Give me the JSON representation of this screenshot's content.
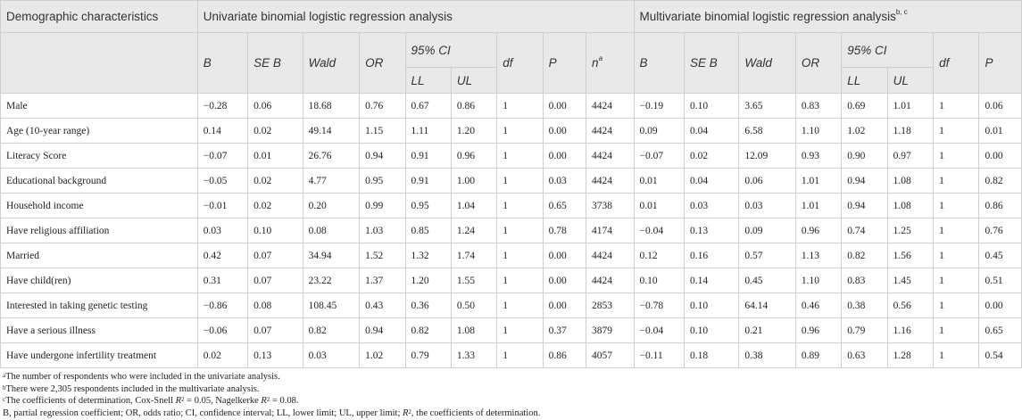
{
  "header": {
    "col_demo": "Demographic characteristics",
    "group_uni": "Univariate binomial logistic regression analysis",
    "group_multi": "Multivariate binomial logistic regression analysis",
    "group_multi_sup": "b, c",
    "ci_label": "95% CI",
    "stats_uni": [
      "B",
      "SE B",
      "Wald",
      "OR"
    ],
    "df": "df",
    "p": "P",
    "n": "n",
    "n_sup": "a",
    "stats_multi": [
      "B",
      "SE B",
      "Wald",
      "OR"
    ],
    "ll": "LL",
    "ul": "UL"
  },
  "rows": [
    {
      "label": "Male",
      "u": [
        "−0.28",
        "0.06",
        "18.68",
        "0.76",
        "0.67",
        "0.86",
        "1",
        "0.00",
        "4424"
      ],
      "m": [
        "−0.19",
        "0.10",
        "3.65",
        "0.83",
        "0.69",
        "1.01",
        "1",
        "0.06"
      ]
    },
    {
      "label": "Age (10-year range)",
      "u": [
        "0.14",
        "0.02",
        "49.14",
        "1.15",
        "1.11",
        "1.20",
        "1",
        "0.00",
        "4424"
      ],
      "m": [
        "0.09",
        "0.04",
        "6.58",
        "1.10",
        "1.02",
        "1.18",
        "1",
        "0.01"
      ]
    },
    {
      "label": "Literacy Score",
      "u": [
        "−0.07",
        "0.01",
        "26.76",
        "0.94",
        "0.91",
        "0.96",
        "1",
        "0.00",
        "4424"
      ],
      "m": [
        "−0.07",
        "0.02",
        "12.09",
        "0.93",
        "0.90",
        "0.97",
        "1",
        "0.00"
      ]
    },
    {
      "label": "Educational background",
      "u": [
        "−0.05",
        "0.02",
        "4.77",
        "0.95",
        "0.91",
        "1.00",
        "1",
        "0.03",
        "4424"
      ],
      "m": [
        "0.01",
        "0.04",
        "0.06",
        "1.01",
        "0.94",
        "1.08",
        "1",
        "0.82"
      ]
    },
    {
      "label": "Household income",
      "u": [
        "−0.01",
        "0.02",
        "0.20",
        "0.99",
        "0.95",
        "1.04",
        "1",
        "0.65",
        "3738"
      ],
      "m": [
        "0.01",
        "0.03",
        "0.03",
        "1.01",
        "0.94",
        "1.08",
        "1",
        "0.86"
      ]
    },
    {
      "label": "Have religious affiliation",
      "u": [
        "0.03",
        "0.10",
        "0.08",
        "1.03",
        "0.85",
        "1.24",
        "1",
        "0.78",
        "4174"
      ],
      "m": [
        "−0.04",
        "0.13",
        "0.09",
        "0.96",
        "0.74",
        "1.25",
        "1",
        "0.76"
      ]
    },
    {
      "label": "Married",
      "u": [
        "0.42",
        "0.07",
        "34.94",
        "1.52",
        "1.32",
        "1.74",
        "1",
        "0.00",
        "4424"
      ],
      "m": [
        "0.12",
        "0.16",
        "0.57",
        "1.13",
        "0.82",
        "1.56",
        "1",
        "0.45"
      ]
    },
    {
      "label": "Have child(ren)",
      "u": [
        "0.31",
        "0.07",
        "23.22",
        "1.37",
        "1.20",
        "1.55",
        "1",
        "0.00",
        "4424"
      ],
      "m": [
        "0.10",
        "0.14",
        "0.45",
        "1.10",
        "0.83",
        "1.45",
        "1",
        "0.51"
      ]
    },
    {
      "label": "Interested in taking genetic testing",
      "u": [
        "−0.86",
        "0.08",
        "108.45",
        "0.43",
        "0.36",
        "0.50",
        "1",
        "0.00",
        "2853"
      ],
      "m": [
        "−0.78",
        "0.10",
        "64.14",
        "0.46",
        "0.38",
        "0.56",
        "1",
        "0.00"
      ]
    },
    {
      "label": "Have a serious illness",
      "u": [
        "−0.06",
        "0.07",
        "0.82",
        "0.94",
        "0.82",
        "1.08",
        "1",
        "0.37",
        "3879"
      ],
      "m": [
        "−0.04",
        "0.10",
        "0.21",
        "0.96",
        "0.79",
        "1.16",
        "1",
        "0.65"
      ]
    },
    {
      "label": "Have undergone infertility treatment",
      "u": [
        "0.02",
        "0.13",
        "0.03",
        "1.02",
        "0.79",
        "1.33",
        "1",
        "0.86",
        "4057"
      ],
      "m": [
        "−0.11",
        "0.18",
        "0.38",
        "0.89",
        "0.63",
        "1.28",
        "1",
        "0.54"
      ]
    }
  ],
  "notes": {
    "a_sup": "a",
    "a_text": "The number of respondents who were included in the univariate analysis.",
    "b_sup": "b",
    "b_text": "There were 2,305 respondents included in the multivariate analysis.",
    "c_sup": "c",
    "c_text_1": "The coefficients of determination, Cox-Snell ",
    "c_r": "R",
    "c_exp": "2",
    "c_text_2": " = 0.05, Nagelkerke ",
    "c_r2": "R",
    "c_exp2": "2",
    "c_text_3": " = 0.08.",
    "abbr_1": "B, partial regression coefficient; OR, odds ratio; CI, confidence interval; LL, lower limit; UL, upper limit; ",
    "abbr_r": "R",
    "abbr_exp": "2",
    "abbr_2": ", the coefficients of determination."
  }
}
